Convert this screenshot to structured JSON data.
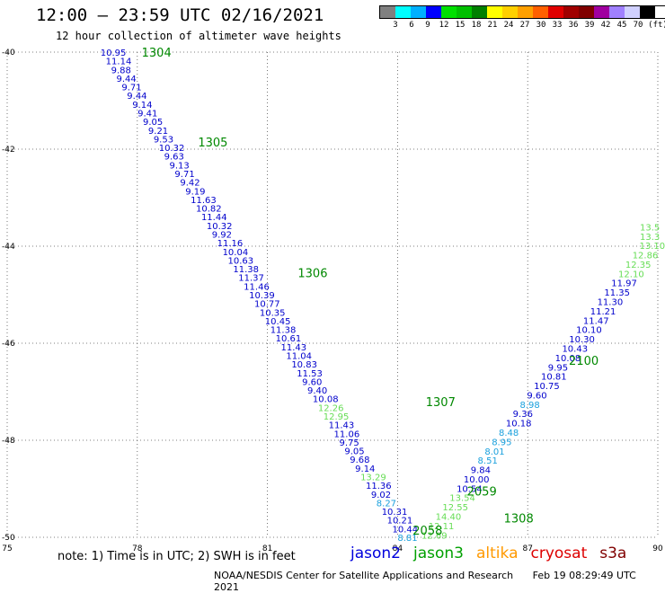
{
  "title": "12:00 — 23:59 UTC 02/16/2021",
  "subtitle": "12 hour collection of altimeter wave heights",
  "legend": {
    "unit": "(ft)",
    "colors": [
      "#808080",
      "#00ffff",
      "#00b0ff",
      "#0000ff",
      "#00e000",
      "#00c000",
      "#008000",
      "#ffff00",
      "#ffd000",
      "#ffa000",
      "#ff6000",
      "#e00000",
      "#a00000",
      "#800000",
      "#a000a0",
      "#a080ff",
      "#d0d0ff",
      "#000000"
    ],
    "ticks": [
      "3",
      "6",
      "9",
      "12",
      "15",
      "18",
      "21",
      "24",
      "27",
      "30",
      "33",
      "36",
      "39",
      "42",
      "45",
      "70"
    ]
  },
  "note": "note:  1) Time is in UTC;  2) SWH is in feet",
  "satellites": [
    {
      "name": "jason2",
      "color": "#0000dd"
    },
    {
      "name": "jason3",
      "color": "#00a000"
    },
    {
      "name": "altika",
      "color": "#ff9900"
    },
    {
      "name": "cryosat",
      "color": "#dd0000"
    },
    {
      "name": "s3a",
      "color": "#800000"
    }
  ],
  "footer": {
    "center": "NOAA/NESDIS Center for Satellite Applications and Research",
    "timestamp": "Feb 19 08:29:49 UTC 2021"
  },
  "chart_data": {
    "type": "scatter",
    "x_axis": {
      "range": [
        75,
        90
      ],
      "ticks": [
        "75",
        "78",
        "81",
        "84",
        "87",
        "90"
      ]
    },
    "y_axis": {
      "range": [
        -50,
        -40
      ],
      "ticks": [
        "-40",
        "-42",
        "-44",
        "-46",
        "-48",
        "-50"
      ]
    },
    "grid": true,
    "tracks": [
      {
        "name": "descending",
        "start": [
          77.15,
          -40.0
        ],
        "end": [
          84.0,
          -50.0
        ],
        "values": [
          "10.95",
          "11.14",
          "9.88",
          "9.44",
          "9.71",
          "9.44",
          "9.14",
          "9.41",
          "9.05",
          "9.21",
          "9.53",
          "10.32",
          "9.63",
          "9.13",
          "9.71",
          "9.42",
          "9.19",
          "11.63",
          "10.82",
          "11.44",
          "10.32",
          "9.92",
          "11.16",
          "10.04",
          "10.63",
          "11.38",
          "11.37",
          "11.46",
          "10.39",
          "10.77",
          "10.35",
          "10.45",
          "11.38",
          "10.61",
          "11.43",
          "11.04",
          "10.83",
          "11.53",
          "9.60",
          "9.40",
          "10.08",
          "12.26",
          "12.95",
          "11.43",
          "11.06",
          "9.75",
          "9.05",
          "9.68",
          "9.14",
          "13.29",
          "11.36",
          "9.02",
          "8.27",
          "10.31",
          "10.21",
          "10.44",
          "8.81"
        ],
        "colors": [
          "#0000cc",
          "#0000cc",
          "#0000cc",
          "#0000cc",
          "#0000cc",
          "#0000cc",
          "#0000cc",
          "#0000cc",
          "#0000cc",
          "#0000cc",
          "#0000cc",
          "#0000cc",
          "#0000cc",
          "#0000cc",
          "#0000cc",
          "#0000cc",
          "#0000cc",
          "#0000cc",
          "#0000cc",
          "#0000cc",
          "#0000cc",
          "#0000cc",
          "#0000cc",
          "#0000cc",
          "#0000cc",
          "#0000cc",
          "#0000cc",
          "#0000cc",
          "#0000cc",
          "#0000cc",
          "#0000cc",
          "#0000cc",
          "#0000cc",
          "#0000cc",
          "#0000cc",
          "#0000cc",
          "#0000cc",
          "#0000cc",
          "#0000cc",
          "#0000cc",
          "#0000cc",
          "#66dd55",
          "#66dd55",
          "#0000cc",
          "#0000cc",
          "#0000cc",
          "#0000cc",
          "#0000cc",
          "#0000cc",
          "#66dd55",
          "#0000cc",
          "#0000cc",
          "#1aa0dd",
          "#0000cc",
          "#0000cc",
          "#0000cc",
          "#1aa0dd"
        ]
      },
      {
        "name": "ascending",
        "start": [
          84.55,
          -49.95
        ],
        "end": [
          89.9,
          -43.6
        ],
        "values": [
          "12.69",
          "12.11",
          "14.40",
          "12.55",
          "13.54",
          "10.54",
          "10.00",
          "9.84",
          "8.51",
          "8.01",
          "8.95",
          "8.48",
          "10.18",
          "9.36",
          "8.98",
          "9.60",
          "10.75",
          "10.81",
          "9.95",
          "10.08",
          "10.43",
          "10.30",
          "10.10",
          "11.47",
          "11.21",
          "11.30",
          "11.35",
          "11.97",
          "12.10",
          "12.35",
          "12.86",
          "13.10",
          "13.3",
          "13.5"
        ],
        "colors": [
          "#66dd55",
          "#66dd55",
          "#66dd55",
          "#66dd55",
          "#66dd55",
          "#0000cc",
          "#0000cc",
          "#0000cc",
          "#1aa0dd",
          "#1aa0dd",
          "#1aa0dd",
          "#1aa0dd",
          "#0000cc",
          "#0000cc",
          "#1aa0dd",
          "#0000cc",
          "#0000cc",
          "#0000cc",
          "#0000cc",
          "#0000cc",
          "#0000cc",
          "#0000cc",
          "#0000cc",
          "#0000cc",
          "#0000cc",
          "#0000cc",
          "#0000cc",
          "#0000cc",
          "#66dd55",
          "#66dd55",
          "#66dd55",
          "#66dd55",
          "#66dd55",
          "#66dd55"
        ]
      }
    ],
    "time_labels": [
      {
        "text": "1304",
        "at": [
          78.1,
          -40.0
        ]
      },
      {
        "text": "1305",
        "at": [
          79.4,
          -41.85
        ]
      },
      {
        "text": "1306",
        "at": [
          81.7,
          -44.55
        ]
      },
      {
        "text": "1307",
        "at": [
          84.65,
          -47.2
        ]
      },
      {
        "text": "2059",
        "at": [
          85.6,
          -49.05
        ]
      },
      {
        "text": "2058",
        "at": [
          84.35,
          -49.85
        ]
      },
      {
        "text": "1308",
        "at": [
          86.45,
          -49.6
        ]
      },
      {
        "text": "2100",
        "at": [
          87.95,
          -46.35
        ]
      }
    ],
    "time_label_color": "#008800"
  }
}
